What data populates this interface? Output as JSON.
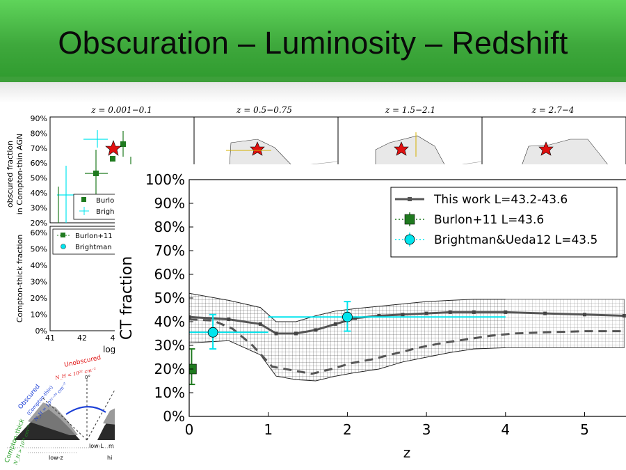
{
  "slide": {
    "title": "Obscuration – Luminosity – Redshift"
  },
  "background_panels": {
    "panel_titles": [
      "z = 0.001−0.1",
      "z = 0.5−0.75",
      "z = 1.5−2.1",
      "z = 2.7−4"
    ],
    "top_ylabel_line1": "obscured fraction",
    "top_ylabel_line2": "in Compton-thin AGN",
    "top_yticks": [
      "90%",
      "80%",
      "70%",
      "60%",
      "50%",
      "40%",
      "30%",
      "20%"
    ],
    "top_legend": [
      "Burlo",
      "Brigh"
    ],
    "bottom_ylabel": "Compton-thick fraction",
    "bottom_yticks": [
      "60%",
      "50%",
      "40%",
      "30%",
      "20%",
      "10%",
      "0%"
    ],
    "bottom_legend": [
      "Burlon+11",
      "Brightman"
    ],
    "xticks": [
      "41",
      "42",
      "4"
    ],
    "xlabel": "log L"
  },
  "diagram": {
    "unobscured": "Unobscured",
    "unobscured_nh": "N_H < 10²² cm⁻²",
    "angle": "0°",
    "obscured": "Obscured",
    "obscured_sub": "(Compton-thin)",
    "obscured_nh": "N_H = 10²²⁻²⁴ cm⁻²",
    "compton_thick": "Compton-thick",
    "compton_thick_nh": "N_H > 10²⁴ cm⁻²",
    "low_l": "low-L",
    "m": "m",
    "low_z": "low-z",
    "hi": "hi"
  },
  "colors": {
    "accent_green": "#3ea83c",
    "burlon": "#1f7a1f",
    "brightman": "#00e5ee",
    "model": "#555555",
    "star": "#e01010"
  },
  "chart_data": {
    "type": "line",
    "xlabel": "z",
    "ylabel": "CT fraction",
    "xlim": [
      0,
      5.5
    ],
    "ylim": [
      0,
      100
    ],
    "xticks": [
      "0",
      "1",
      "2",
      "3",
      "4",
      "5"
    ],
    "yticks": [
      "0%",
      "10%",
      "20%",
      "30%",
      "40%",
      "50%",
      "60%",
      "70%",
      "80%",
      "90%",
      "100%"
    ],
    "legend_position": "top-right",
    "grid": false,
    "legend": [
      "This work L=43.2-43.6",
      "Burlon+11 L=43.6",
      "Brightman&Ueda12 L=43.5"
    ],
    "series": [
      {
        "name": "This work L=43.2-43.6",
        "x": [
          0.0,
          0.5,
          0.9,
          1.1,
          1.35,
          1.6,
          1.85,
          2.1,
          2.4,
          2.7,
          3.0,
          3.3,
          3.6,
          4.0,
          4.5,
          5.0,
          5.5
        ],
        "y": [
          42,
          41,
          39,
          35,
          35,
          36.5,
          39,
          41.5,
          42.5,
          43,
          43.5,
          44,
          44,
          44,
          43.5,
          43,
          42.5
        ],
        "upper": [
          52,
          49,
          46,
          40,
          40,
          42.5,
          44.5,
          45.5,
          46.5,
          47.5,
          48.5,
          49,
          49.5,
          49.5,
          49.5,
          49.5,
          49.5
        ],
        "lower": [
          31,
          32,
          26,
          17,
          15.5,
          15,
          17,
          18.5,
          20,
          23,
          25,
          27,
          28.5,
          29,
          29,
          29,
          29
        ]
      },
      {
        "name": "dashed",
        "x": [
          0.0,
          0.3,
          0.55,
          0.8,
          1.05,
          1.3,
          1.55,
          1.8,
          2.05,
          2.3,
          2.6,
          2.9,
          3.2,
          3.5,
          3.8,
          4.1,
          4.5,
          5.0,
          5.5
        ],
        "y": [
          41,
          40.5,
          37,
          30,
          21,
          19.5,
          18,
          20,
          22.5,
          24,
          26.5,
          29,
          31,
          32.5,
          34,
          35,
          35.5,
          36,
          36
        ]
      }
    ],
    "points": [
      {
        "name": "Burlon+11 L=43.6",
        "x": 0.03,
        "y": 20,
        "yerr": [
          13.5,
          28.5
        ]
      },
      {
        "name": "Brightman&Ueda12 L=43.5",
        "x": 0.3,
        "y": 35.5,
        "xerr": [
          0,
          1
        ],
        "yerr": [
          28.5,
          43
        ]
      },
      {
        "name": "Brightman&Ueda12 L=43.5",
        "x": 2.0,
        "y": 42,
        "xerr": [
          1,
          4
        ],
        "yerr": [
          36,
          48.5
        ]
      }
    ]
  }
}
